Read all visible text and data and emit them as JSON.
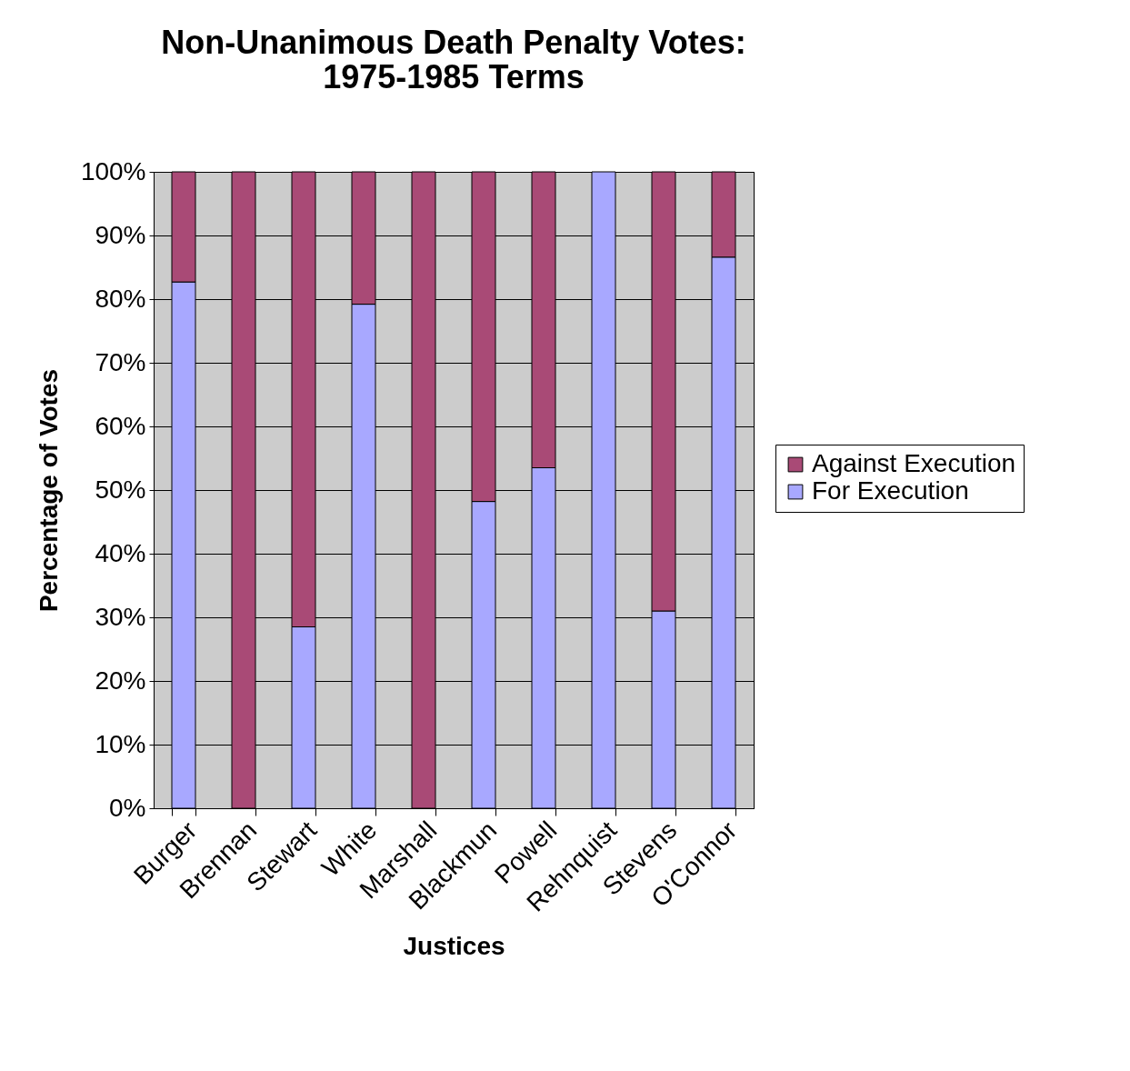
{
  "chart_data": {
    "type": "bar",
    "title": "Non-Unanimous Death Penalty Votes:\n1975-1985 Terms",
    "xlabel": "Justices",
    "ylabel": "Percentage of Votes",
    "categories": [
      "Burger",
      "Brennan",
      "Stewart",
      "White",
      "Marshall",
      "Blackmun",
      "Powell",
      "Rehnquist",
      "Stevens",
      "O'Connor"
    ],
    "series": [
      {
        "name": "For Execution",
        "color": "#a8a8ff",
        "values": [
          82.7,
          0,
          28.5,
          79.2,
          0,
          48.2,
          53.5,
          100,
          31,
          86.6
        ]
      },
      {
        "name": "Against Execution",
        "color": "#a94a76",
        "values": [
          17.3,
          100,
          71.5,
          20.8,
          100,
          51.8,
          46.5,
          0,
          69,
          13.4
        ]
      }
    ],
    "stacked": true,
    "ylim": [
      0,
      100
    ],
    "yticks": [
      {
        "value": 0,
        "label": "0%"
      },
      {
        "value": 10,
        "label": "10%"
      },
      {
        "value": 20,
        "label": "20%"
      },
      {
        "value": 30,
        "label": "30%"
      },
      {
        "value": 40,
        "label": "40%"
      },
      {
        "value": 50,
        "label": "50%"
      },
      {
        "value": 60,
        "label": "60%"
      },
      {
        "value": 70,
        "label": "70%"
      },
      {
        "value": 80,
        "label": "80%"
      },
      {
        "value": 90,
        "label": "90%"
      },
      {
        "value": 100,
        "label": "100%"
      }
    ],
    "grid": "y",
    "legend": "right"
  }
}
